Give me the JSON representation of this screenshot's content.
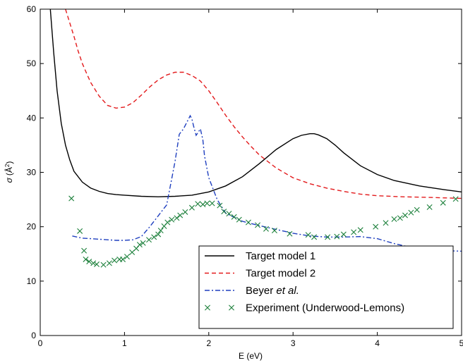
{
  "chart_data": {
    "type": "line",
    "title": "",
    "xlabel": "E (eV)",
    "ylabel_symbol": "σ",
    "ylabel_unit_prefix": "(Å",
    "ylabel_unit_exp": "2",
    "ylabel_unit_suffix": ")",
    "xlim": [
      0,
      5
    ],
    "ylim": [
      0,
      60
    ],
    "xticks": [
      "0",
      "1",
      "2",
      "3",
      "4",
      "5"
    ],
    "yticks": [
      "0",
      "10",
      "20",
      "30",
      "40",
      "50",
      "60"
    ],
    "grid": false,
    "legend_placement": "lower-right",
    "series": [
      {
        "name": "Target model 1",
        "style": "solid",
        "color": "#000000",
        "x": [
          0.12,
          0.16,
          0.2,
          0.25,
          0.3,
          0.35,
          0.4,
          0.5,
          0.6,
          0.7,
          0.8,
          0.9,
          1.0,
          1.2,
          1.4,
          1.6,
          1.8,
          2.0,
          2.2,
          2.4,
          2.6,
          2.8,
          3.0,
          3.1,
          3.2,
          3.25,
          3.3,
          3.4,
          3.5,
          3.6,
          3.8,
          4.0,
          4.2,
          4.5,
          4.8,
          5.0
        ],
        "y": [
          60,
          52,
          45,
          39,
          35,
          32.3,
          30.2,
          28.2,
          27.1,
          26.5,
          26.1,
          25.9,
          25.8,
          25.6,
          25.5,
          25.6,
          25.8,
          26.4,
          27.5,
          29.2,
          31.6,
          34.2,
          36.2,
          36.8,
          37.1,
          37.1,
          36.9,
          36.2,
          35.0,
          33.6,
          31.2,
          29.6,
          28.5,
          27.5,
          26.8,
          26.4
        ]
      },
      {
        "name": "Target model 2",
        "style": "dashed",
        "color": "#e31a1c",
        "x": [
          0.3,
          0.35,
          0.4,
          0.45,
          0.5,
          0.55,
          0.6,
          0.7,
          0.8,
          0.9,
          1.0,
          1.1,
          1.2,
          1.3,
          1.4,
          1.5,
          1.6,
          1.7,
          1.8,
          1.9,
          2.0,
          2.1,
          2.2,
          2.3,
          2.4,
          2.5,
          2.6,
          2.8,
          3.0,
          3.2,
          3.4,
          3.6,
          3.8,
          4.0,
          4.3,
          4.6,
          5.0
        ],
        "y": [
          60,
          57.5,
          55,
          52.3,
          50,
          48.2,
          46.5,
          44,
          42.3,
          41.8,
          42.0,
          42.8,
          44.2,
          45.7,
          47.0,
          47.9,
          48.4,
          48.4,
          47.8,
          46.8,
          45.0,
          42.8,
          40.5,
          38.4,
          36.5,
          34.8,
          33.2,
          30.8,
          29.0,
          27.9,
          27.1,
          26.5,
          26.0,
          25.7,
          25.5,
          25.4,
          25.2
        ]
      },
      {
        "name_prefix": "Beyer ",
        "name_italic": "et al.",
        "style": "dashdot",
        "color": "#1f3fbf",
        "x": [
          0.38,
          0.5,
          0.6,
          0.7,
          0.8,
          0.9,
          1.0,
          1.1,
          1.2,
          1.3,
          1.4,
          1.45,
          1.5,
          1.55,
          1.6,
          1.65,
          1.7,
          1.75,
          1.78,
          1.8,
          1.82,
          1.85,
          1.88,
          1.9,
          1.93,
          1.95,
          2.0,
          2.1,
          2.2,
          2.4,
          2.6,
          2.8,
          3.0,
          3.2,
          3.4,
          3.6,
          3.8,
          4.0,
          4.2,
          4.4,
          4.6,
          4.8,
          5.0
        ],
        "y": [
          18.3,
          17.9,
          17.8,
          17.7,
          17.6,
          17.5,
          17.5,
          17.6,
          18.2,
          20.0,
          22.0,
          23.0,
          24.0,
          28.0,
          32.0,
          37.0,
          38.0,
          39.5,
          40.4,
          39.8,
          38.5,
          36.8,
          37.5,
          38.0,
          36.0,
          33.0,
          29.0,
          25.0,
          22.5,
          21.0,
          20.2,
          19.5,
          18.8,
          18.3,
          18.1,
          18.1,
          18.2,
          17.8,
          16.9,
          16.2,
          15.8,
          15.6,
          15.5
        ]
      },
      {
        "name": "Experiment (Underwood-Lemons)",
        "style": "markers",
        "marker": "x",
        "color": "#1b7f3a",
        "x": [
          0.37,
          0.47,
          0.52,
          0.54,
          0.58,
          0.63,
          0.67,
          0.75,
          0.82,
          0.88,
          0.94,
          0.98,
          1.03,
          1.09,
          1.14,
          1.18,
          1.22,
          1.29,
          1.35,
          1.4,
          1.43,
          1.47,
          1.51,
          1.56,
          1.62,
          1.66,
          1.72,
          1.8,
          1.87,
          1.93,
          1.98,
          2.04,
          2.13,
          2.18,
          2.24,
          2.3,
          2.36,
          2.47,
          2.58,
          2.68,
          2.78,
          2.96,
          3.18,
          3.25,
          3.41,
          3.52,
          3.6,
          3.72,
          3.8,
          3.98,
          4.1,
          4.2,
          4.27,
          4.33,
          4.4,
          4.47,
          4.62,
          4.78,
          4.93
        ],
        "y": [
          25.2,
          19.2,
          15.6,
          14.0,
          13.6,
          13.3,
          13.1,
          13.0,
          13.3,
          13.8,
          14.0,
          14.0,
          14.5,
          15.3,
          16.0,
          16.7,
          17.0,
          17.6,
          18.1,
          18.6,
          19.3,
          20.1,
          20.8,
          21.3,
          21.6,
          22.1,
          22.7,
          23.5,
          24.2,
          24.1,
          24.3,
          24.3,
          23.9,
          22.8,
          22.4,
          21.8,
          21.3,
          20.8,
          20.3,
          19.6,
          19.3,
          18.7,
          18.5,
          18.1,
          18.1,
          18.2,
          18.6,
          19.0,
          19.4,
          20.0,
          20.7,
          21.4,
          21.6,
          22.1,
          22.6,
          23.1,
          23.6,
          24.4,
          25.1
        ]
      }
    ]
  }
}
